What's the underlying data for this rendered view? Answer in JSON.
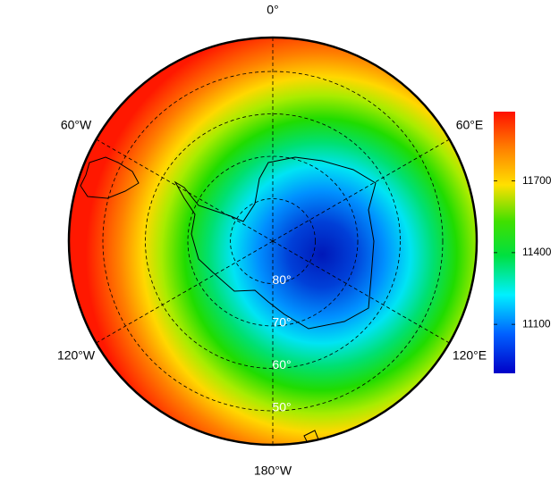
{
  "map": {
    "lon_labels": [
      {
        "value": 0,
        "label": "0°"
      },
      {
        "value": 60,
        "label": "60°E"
      },
      {
        "value": 120,
        "label": "120°E"
      },
      {
        "value": 180,
        "label": "180°W"
      },
      {
        "value": -120,
        "label": "120°W"
      },
      {
        "value": -60,
        "label": "60°W"
      }
    ],
    "lat_circles": [
      {
        "value": 80,
        "label": "80°"
      },
      {
        "value": 70,
        "label": "70°"
      },
      {
        "value": 60,
        "label": "60°"
      },
      {
        "value": 50,
        "label": "50°"
      }
    ],
    "lat_lim": [
      90,
      42
    ],
    "colorbar": {
      "lim": [
        10895,
        11990
      ],
      "ticks": [
        11100,
        11400,
        11700
      ]
    }
  }
}
